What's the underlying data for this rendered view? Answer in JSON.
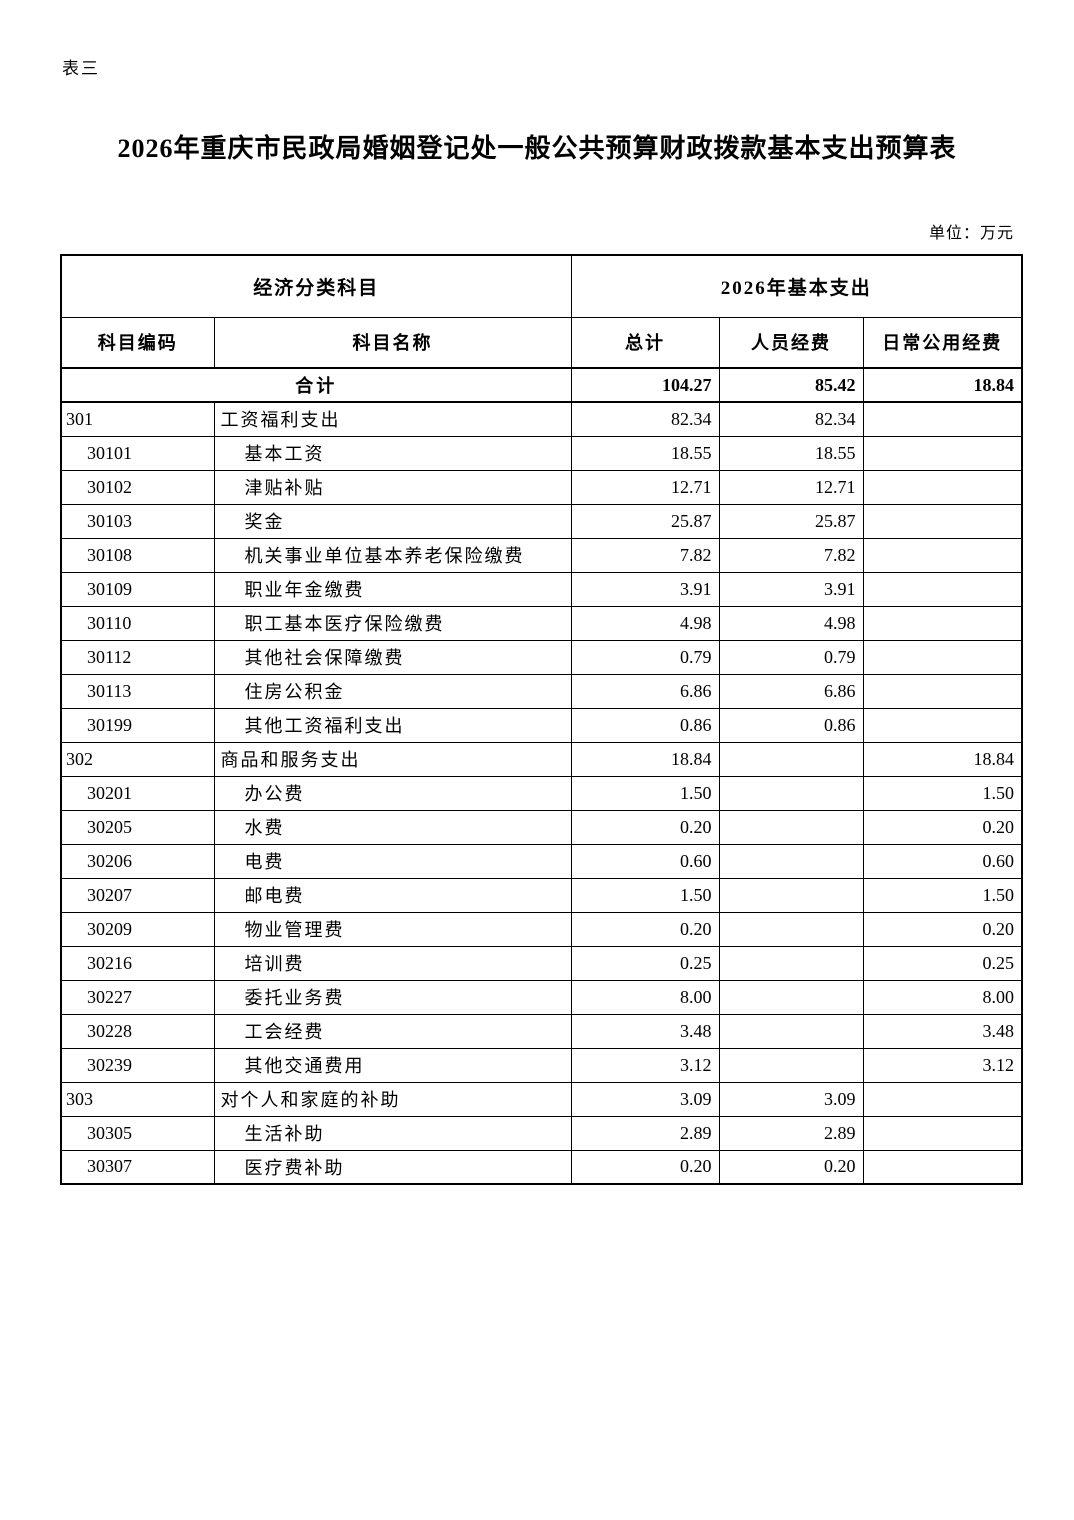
{
  "doc": {
    "corner_label": "表三",
    "title": "2026年重庆市民政局婚姻登记处一般公共预算财政拨款基本支出预算表",
    "unit_note": "单位：万元"
  },
  "table": {
    "header_group_left": "经济分类科目",
    "header_group_right": "2026年基本支出",
    "columns": [
      "科目编码",
      "科目名称",
      "总计",
      "人员经费",
      "日常公用经费"
    ],
    "rows": [
      {
        "code": "",
        "name": "合计",
        "level": 0,
        "bold": true,
        "total": "104.27",
        "personnel": "85.42",
        "daily": "18.84"
      },
      {
        "code": "301",
        "name": "工资福利支出",
        "level": 1,
        "bold": false,
        "total": "82.34",
        "personnel": "82.34",
        "daily": ""
      },
      {
        "code": "30101",
        "name": "基本工资",
        "level": 2,
        "bold": false,
        "total": "18.55",
        "personnel": "18.55",
        "daily": ""
      },
      {
        "code": "30102",
        "name": "津贴补贴",
        "level": 2,
        "bold": false,
        "total": "12.71",
        "personnel": "12.71",
        "daily": ""
      },
      {
        "code": "30103",
        "name": "奖金",
        "level": 2,
        "bold": false,
        "total": "25.87",
        "personnel": "25.87",
        "daily": ""
      },
      {
        "code": "30108",
        "name": "机关事业单位基本养老保险缴费",
        "level": 2,
        "bold": false,
        "total": "7.82",
        "personnel": "7.82",
        "daily": ""
      },
      {
        "code": "30109",
        "name": "职业年金缴费",
        "level": 2,
        "bold": false,
        "total": "3.91",
        "personnel": "3.91",
        "daily": ""
      },
      {
        "code": "30110",
        "name": "职工基本医疗保险缴费",
        "level": 2,
        "bold": false,
        "total": "4.98",
        "personnel": "4.98",
        "daily": ""
      },
      {
        "code": "30112",
        "name": "其他社会保障缴费",
        "level": 2,
        "bold": false,
        "total": "0.79",
        "personnel": "0.79",
        "daily": ""
      },
      {
        "code": "30113",
        "name": "住房公积金",
        "level": 2,
        "bold": false,
        "total": "6.86",
        "personnel": "6.86",
        "daily": ""
      },
      {
        "code": "30199",
        "name": "其他工资福利支出",
        "level": 2,
        "bold": false,
        "total": "0.86",
        "personnel": "0.86",
        "daily": ""
      },
      {
        "code": "302",
        "name": "商品和服务支出",
        "level": 1,
        "bold": false,
        "total": "18.84",
        "personnel": "",
        "daily": "18.84"
      },
      {
        "code": "30201",
        "name": "办公费",
        "level": 2,
        "bold": false,
        "total": "1.50",
        "personnel": "",
        "daily": "1.50"
      },
      {
        "code": "30205",
        "name": "水费",
        "level": 2,
        "bold": false,
        "total": "0.20",
        "personnel": "",
        "daily": "0.20"
      },
      {
        "code": "30206",
        "name": "电费",
        "level": 2,
        "bold": false,
        "total": "0.60",
        "personnel": "",
        "daily": "0.60"
      },
      {
        "code": "30207",
        "name": "邮电费",
        "level": 2,
        "bold": false,
        "total": "1.50",
        "personnel": "",
        "daily": "1.50"
      },
      {
        "code": "30209",
        "name": "物业管理费",
        "level": 2,
        "bold": false,
        "total": "0.20",
        "personnel": "",
        "daily": "0.20"
      },
      {
        "code": "30216",
        "name": "培训费",
        "level": 2,
        "bold": false,
        "total": "0.25",
        "personnel": "",
        "daily": "0.25"
      },
      {
        "code": "30227",
        "name": "委托业务费",
        "level": 2,
        "bold": false,
        "total": "8.00",
        "personnel": "",
        "daily": "8.00"
      },
      {
        "code": "30228",
        "name": "工会经费",
        "level": 2,
        "bold": false,
        "total": "3.48",
        "personnel": "",
        "daily": "3.48"
      },
      {
        "code": "30239",
        "name": "其他交通费用",
        "level": 2,
        "bold": false,
        "total": "3.12",
        "personnel": "",
        "daily": "3.12"
      },
      {
        "code": "303",
        "name": "对个人和家庭的补助",
        "level": 1,
        "bold": false,
        "total": "3.09",
        "personnel": "3.09",
        "daily": ""
      },
      {
        "code": "30305",
        "name": "生活补助",
        "level": 2,
        "bold": false,
        "total": "2.89",
        "personnel": "2.89",
        "daily": ""
      },
      {
        "code": "30307",
        "name": "医疗费补助",
        "level": 2,
        "bold": false,
        "total": "0.20",
        "personnel": "0.20",
        "daily": ""
      }
    ]
  }
}
